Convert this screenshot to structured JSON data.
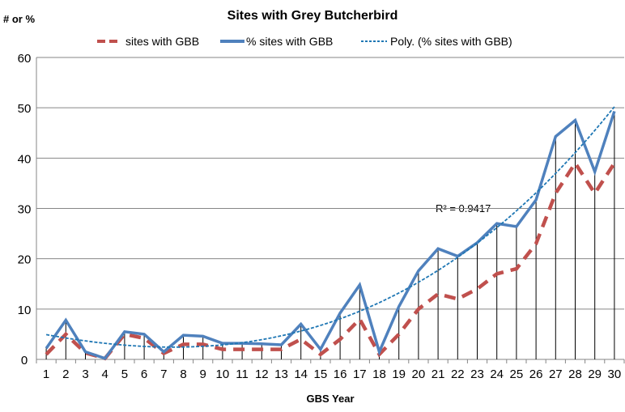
{
  "chart_data": {
    "type": "line",
    "title": "Sites with Grey Butcherbird",
    "ylabel": "# or %",
    "xlabel": "GBS Year",
    "ylim": [
      0,
      60
    ],
    "yticks": [
      0,
      10,
      20,
      30,
      40,
      50,
      60
    ],
    "x": [
      1,
      2,
      3,
      4,
      5,
      6,
      7,
      8,
      9,
      10,
      11,
      12,
      13,
      14,
      15,
      16,
      17,
      18,
      19,
      20,
      21,
      22,
      23,
      24,
      25,
      26,
      27,
      28,
      29,
      30
    ],
    "series": [
      {
        "name": "sites with GBB",
        "color": "#c0504d",
        "style": "dashed",
        "values": [
          1,
          5,
          1.3,
          0.2,
          5,
          4.2,
          1.2,
          3,
          3,
          2,
          2,
          2,
          2,
          4,
          1,
          4,
          8,
          1,
          5,
          10,
          13,
          12,
          14,
          17,
          18,
          23,
          33,
          39,
          33,
          39
        ]
      },
      {
        "name": "% sites with GBB",
        "color": "#4f81bd",
        "style": "solid",
        "values": [
          2.2,
          7.8,
          1.5,
          0.2,
          5.5,
          5,
          1.5,
          4.8,
          4.6,
          3.2,
          3.2,
          3.1,
          2.9,
          7,
          2,
          9.2,
          14.8,
          1.5,
          10.5,
          17.6,
          22,
          20.5,
          23.2,
          27,
          26.4,
          31.7,
          44.3,
          47.5,
          37.3,
          49.3
        ]
      }
    ],
    "trendline": {
      "name": "Poly. (% sites with GBB)",
      "color": "#1f77b4",
      "of": "% sites with GBB",
      "order": 3,
      "r2_label": "R² = 0.9417"
    },
    "grid": true,
    "legend": "top"
  }
}
